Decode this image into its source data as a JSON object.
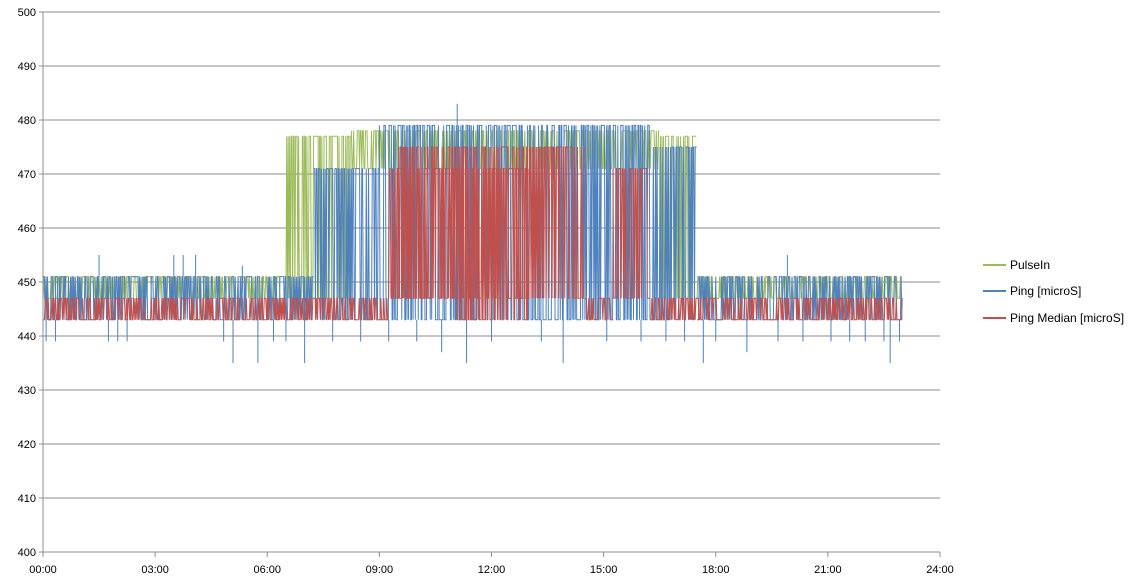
{
  "chart_data": {
    "type": "line",
    "title": "",
    "xlabel": "",
    "ylabel": "",
    "xlim": [
      "00:00",
      "24:00"
    ],
    "ylim": [
      400,
      500
    ],
    "x_ticks": [
      "00:00",
      "03:00",
      "06:00",
      "09:00",
      "12:00",
      "15:00",
      "18:00",
      "21:00",
      "24:00"
    ],
    "y_ticks": [
      400,
      410,
      420,
      430,
      440,
      450,
      460,
      470,
      480,
      490,
      500
    ],
    "grid": "horizontal",
    "legend_position": "right",
    "x_data_range": [
      "00:00",
      "23:00"
    ],
    "series": [
      {
        "name": "PulseIn",
        "color": "#9bbb59",
        "segments": [
          {
            "from": "00:00",
            "to": "06:30",
            "low": 447,
            "high": 451
          },
          {
            "from": "06:30",
            "to": "08:15",
            "low": 447,
            "high": 477
          },
          {
            "from": "08:15",
            "to": "16:30",
            "low": 471,
            "high": 478
          },
          {
            "from": "16:30",
            "to": "17:30",
            "low": 447,
            "high": 477
          },
          {
            "from": "17:30",
            "to": "23:00",
            "low": 447,
            "high": 451
          }
        ]
      },
      {
        "name": "Ping [microS]",
        "color": "#4f81bd",
        "segments": [
          {
            "from": "00:00",
            "to": "07:15",
            "low": 443,
            "high": 451
          },
          {
            "from": "07:15",
            "to": "09:00",
            "low": 443,
            "high": 471
          },
          {
            "from": "09:00",
            "to": "16:15",
            "low": 443,
            "high": 479
          },
          {
            "from": "16:15",
            "to": "17:30",
            "low": 443,
            "high": 475
          },
          {
            "from": "17:30",
            "to": "23:00",
            "low": 443,
            "high": 451
          }
        ],
        "spikes": [
          [
            "00:05",
            439
          ],
          [
            "00:20",
            439
          ],
          [
            "01:30",
            455
          ],
          [
            "01:45",
            439
          ],
          [
            "02:00",
            439
          ],
          [
            "02:15",
            439
          ],
          [
            "03:30",
            455
          ],
          [
            "03:45",
            455
          ],
          [
            "04:05",
            455
          ],
          [
            "04:50",
            439
          ],
          [
            "05:05",
            435
          ],
          [
            "05:20",
            453
          ],
          [
            "05:45",
            435
          ],
          [
            "06:10",
            439
          ],
          [
            "06:30",
            439
          ],
          [
            "07:00",
            435
          ],
          [
            "07:45",
            439
          ],
          [
            "08:30",
            439
          ],
          [
            "09:15",
            439
          ],
          [
            "10:00",
            439
          ],
          [
            "10:40",
            437
          ],
          [
            "11:05",
            483
          ],
          [
            "11:20",
            435
          ],
          [
            "12:00",
            439
          ],
          [
            "13:20",
            439
          ],
          [
            "13:55",
            435
          ],
          [
            "15:05",
            439
          ],
          [
            "16:00",
            439
          ],
          [
            "16:40",
            439
          ],
          [
            "17:10",
            439
          ],
          [
            "17:40",
            435
          ],
          [
            "18:00",
            439
          ],
          [
            "18:50",
            437
          ],
          [
            "19:40",
            439
          ],
          [
            "19:55",
            455
          ],
          [
            "20:20",
            439
          ],
          [
            "21:05",
            439
          ],
          [
            "21:35",
            439
          ],
          [
            "22:00",
            439
          ],
          [
            "22:30",
            439
          ],
          [
            "22:40",
            435
          ],
          [
            "22:55",
            439
          ]
        ]
      },
      {
        "name": "Ping Median [microS]",
        "color": "#c0504d",
        "segments": [
          {
            "from": "00:00",
            "to": "09:15",
            "low": 443,
            "high": 447
          },
          {
            "from": "09:15",
            "to": "11:00",
            "low": 447,
            "high": 471
          },
          {
            "from": "09:30",
            "to": "14:30",
            "low": 447,
            "high": 475
          },
          {
            "from": "11:00",
            "to": "13:00",
            "low": 443,
            "high": 471
          },
          {
            "from": "14:30",
            "to": "15:15",
            "low": 443,
            "high": 447
          },
          {
            "from": "15:15",
            "to": "16:15",
            "low": 447,
            "high": 471
          },
          {
            "from": "16:15",
            "to": "23:00",
            "low": 443,
            "high": 447
          }
        ]
      }
    ]
  }
}
